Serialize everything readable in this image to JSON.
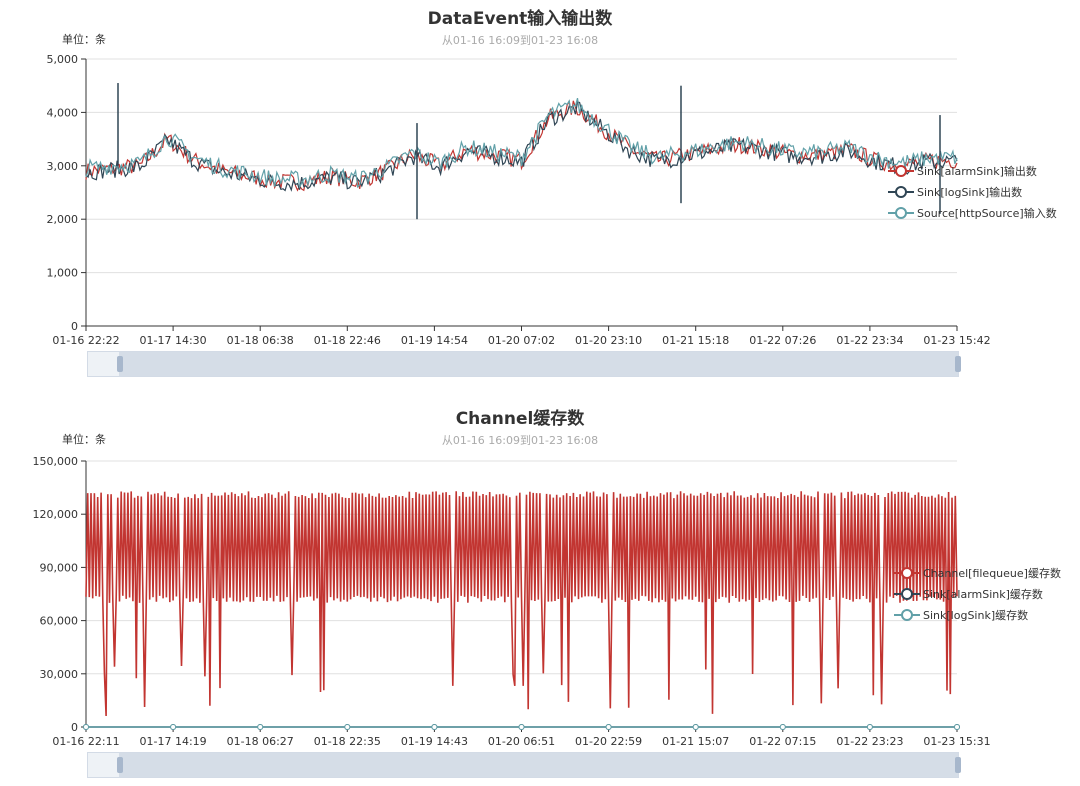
{
  "charts": [
    {
      "title": "DataEvent输入输出数",
      "subtitle": "从01-16 16:09到01-23 16:08",
      "unit": "单位：条",
      "legend": [
        "Sink[alarmSink]输出数",
        "Sink[logSink]输出数",
        "Source[httpSource]输入数"
      ],
      "colors": [
        "#c23531",
        "#2f4554",
        "#61a0a8"
      ]
    },
    {
      "title": "Channel缓存数",
      "subtitle": "从01-16 16:09到01-23 16:08",
      "unit": "单位：条",
      "legend": [
        "Channel[filequeue]缓存数",
        "Sink[alarmSink]缓存数",
        "Sink[logSink]缓存数"
      ],
      "colors": [
        "#c23531",
        "#2f4554",
        "#61a0a8"
      ]
    }
  ],
  "chart_data": [
    {
      "type": "line",
      "title": "DataEvent输入输出数",
      "ylim": [
        0,
        5000
      ],
      "yticks": [
        "0",
        "1,000",
        "2,000",
        "3,000",
        "4,000",
        "5,000"
      ],
      "ytick_values": [
        0,
        1000,
        2000,
        3000,
        4000,
        5000
      ],
      "xticks": [
        "01-16 22:22",
        "01-17 14:30",
        "01-18 06:38",
        "01-18 22:46",
        "01-19 14:54",
        "01-20 07:02",
        "01-20 23:10",
        "01-21 15:18",
        "01-22 07:26",
        "01-22 23:34",
        "01-23 15:42"
      ],
      "grid": true,
      "legend_position": "right",
      "series": [
        {
          "name": "Sink[alarmSink]输出数",
          "values": [
            2900,
            2950,
            3000,
            3500,
            3100,
            2900,
            2800,
            2700,
            2700,
            2800,
            2700,
            2900,
            3200,
            3000,
            3300,
            3200,
            3100,
            3900,
            4100,
            3700,
            3300,
            3100,
            3200,
            3300,
            3400,
            3300,
            3200,
            3200,
            3300,
            3100,
            3000,
            3100,
            3100
          ]
        },
        {
          "name": "Sink[logSink]输出数",
          "values": [
            2880,
            2930,
            2980,
            3480,
            3080,
            2880,
            2780,
            2680,
            2680,
            2780,
            2680,
            2880,
            3180,
            2980,
            3280,
            3180,
            3080,
            3880,
            4080,
            3680,
            3280,
            3080,
            3180,
            3280,
            3380,
            3280,
            3180,
            3180,
            3280,
            3080,
            2980,
            3080,
            3080
          ]
        },
        {
          "name": "Source[httpSource]输入数",
          "values": [
            2950,
            3000,
            3050,
            3550,
            3150,
            2950,
            2850,
            2750,
            2750,
            2850,
            2750,
            2950,
            3250,
            3050,
            3350,
            3250,
            3150,
            3950,
            4150,
            3750,
            3350,
            3150,
            3250,
            3350,
            3450,
            3350,
            3250,
            3250,
            3350,
            3150,
            3050,
            3150,
            3150
          ]
        }
      ]
    },
    {
      "type": "line",
      "title": "Channel缓存数",
      "ylim": [
        0,
        150000
      ],
      "yticks": [
        "0",
        "30,000",
        "60,000",
        "90,000",
        "120,000",
        "150,000"
      ],
      "ytick_values": [
        0,
        30000,
        60000,
        90000,
        120000,
        150000
      ],
      "xticks": [
        "01-16 22:11",
        "01-17 14:19",
        "01-18 06:27",
        "01-18 22:35",
        "01-19 14:43",
        "01-20 06:51",
        "01-20 22:59",
        "01-21 15:07",
        "01-22 07:15",
        "01-22 23:23",
        "01-23 15:31"
      ],
      "grid": true,
      "legend_position": "right",
      "series": [
        {
          "name": "Channel[filequeue]缓存数",
          "low": 70000,
          "high": 133000
        },
        {
          "name": "Sink[alarmSink]缓存数",
          "values": [
            0,
            0,
            0,
            0,
            0,
            0,
            0,
            0,
            0,
            0,
            0
          ]
        },
        {
          "name": "Sink[logSink]缓存数",
          "values": [
            0,
            0,
            0,
            0,
            0,
            0,
            0,
            0,
            0,
            0,
            0
          ]
        }
      ]
    }
  ]
}
